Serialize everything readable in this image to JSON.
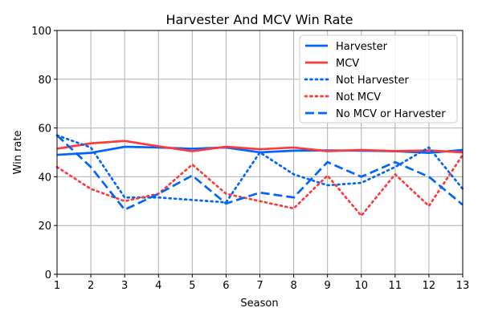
{
  "chart_data": {
    "type": "line",
    "title": "Harvester And MCV Win Rate",
    "xlabel": "Season",
    "ylabel": "Win rate",
    "x": [
      1,
      2,
      3,
      4,
      5,
      6,
      7,
      8,
      9,
      10,
      11,
      12,
      13
    ],
    "xlim": [
      1,
      13
    ],
    "ylim": [
      0,
      100
    ],
    "yticks": [
      0,
      20,
      40,
      60,
      80,
      100
    ],
    "grid": true,
    "legend": "top-right",
    "series": [
      {
        "name": "Harvester",
        "color": "#0064ff",
        "style": "solid",
        "values": [
          49,
          49.8,
          52.3,
          52,
          51.5,
          52,
          50,
          50.7,
          50.8,
          50.7,
          50.5,
          49.8,
          51
        ]
      },
      {
        "name": "MCV",
        "color": "#ff3838",
        "style": "solid",
        "values": [
          51.5,
          53.7,
          54.7,
          52.5,
          50.5,
          52.3,
          51.3,
          52,
          50.5,
          51,
          50.5,
          50.8,
          50
        ]
      },
      {
        "name": "Not Harvester",
        "color": "#0064ff",
        "style": "dotted",
        "values": [
          57,
          52,
          31.5,
          31.5,
          30.5,
          29.5,
          50,
          41,
          36.5,
          37.5,
          44,
          52,
          35
        ]
      },
      {
        "name": "Not MCV",
        "color": "#ff3838",
        "style": "dotted",
        "values": [
          44,
          35,
          30,
          33,
          45,
          33,
          30,
          27,
          40.5,
          24,
          41,
          28,
          49
        ]
      },
      {
        "name": "No MCV or Harvester",
        "color": "#0064ff",
        "style": "dashed",
        "values": [
          57,
          44,
          26.5,
          33,
          40.5,
          29,
          33.5,
          31.5,
          46,
          40,
          46,
          40,
          28.5
        ]
      }
    ]
  }
}
